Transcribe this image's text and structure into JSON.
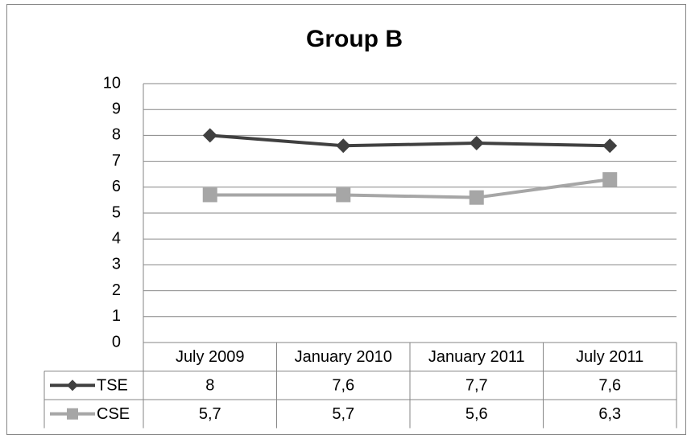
{
  "chart_data": {
    "type": "line",
    "title": "Group B",
    "categories": [
      "July 2009",
      "January 2010",
      "January 2011",
      "July 2011"
    ],
    "series": [
      {
        "name": "TSE",
        "color": "#404040",
        "marker": "diamond",
        "values": [
          8,
          7.6,
          7.7,
          7.6
        ],
        "value_labels": [
          "8",
          "7,6",
          "7,7",
          "7,6"
        ]
      },
      {
        "name": "CSE",
        "color": "#a6a6a6",
        "marker": "square",
        "values": [
          5.7,
          5.7,
          5.6,
          6.3
        ],
        "value_labels": [
          "5,7",
          "5,7",
          "5,6",
          "6,3"
        ]
      }
    ],
    "ylim": [
      0,
      10
    ],
    "yticks": [
      0,
      1,
      2,
      3,
      4,
      5,
      6,
      7,
      8,
      9,
      10
    ],
    "grid": true
  }
}
